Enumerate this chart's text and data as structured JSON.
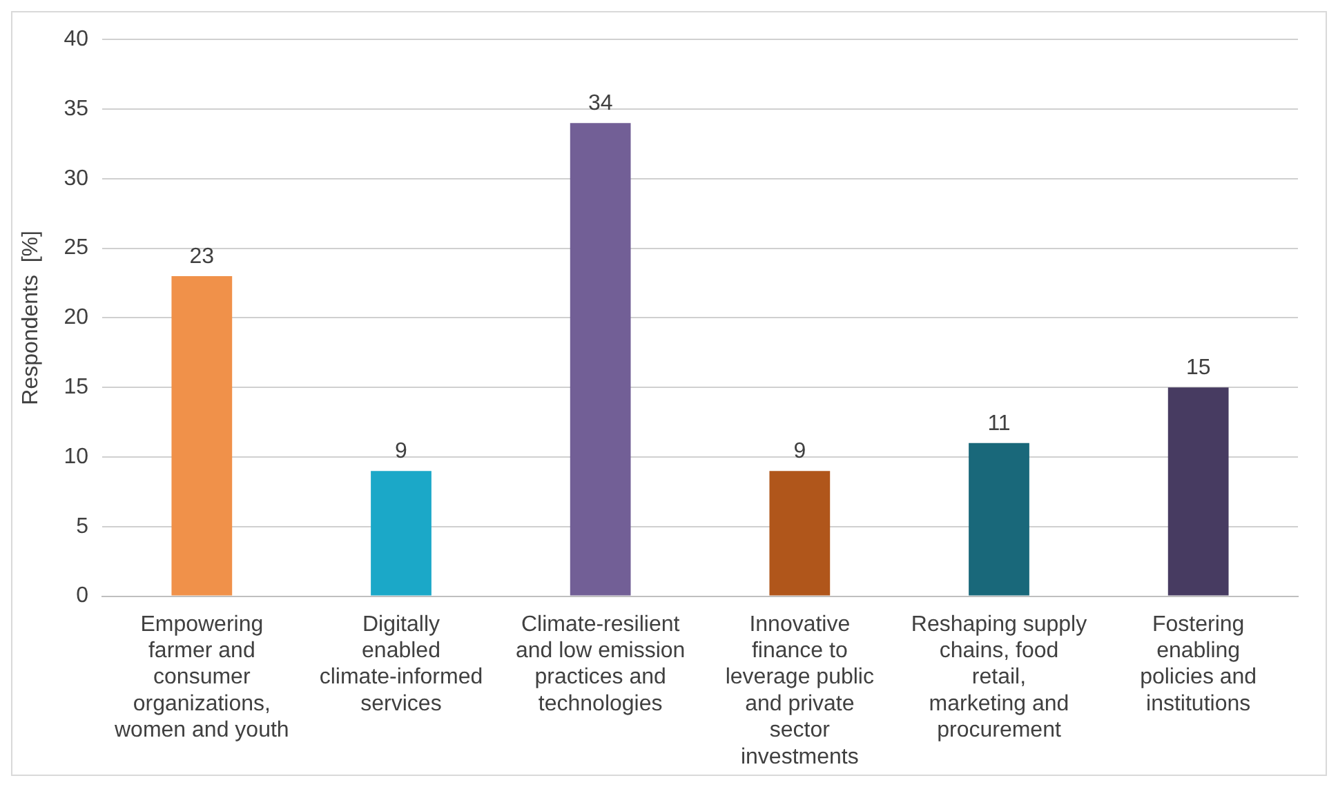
{
  "chart_data": {
    "type": "bar",
    "ylabel": "Respondents  [%]",
    "categories": [
      "Empowering farmer and consumer organizations, women and youth",
      "Digitally enabled climate-informed services",
      "Climate-resilient and low emission practices and technologies",
      "Innovative finance to leverage public and private sector investments",
      "Reshaping supply chains, food retail, marketing and procurement",
      "Fostering enabling policies and institutions"
    ],
    "values": [
      23,
      9,
      34,
      9,
      11,
      15
    ],
    "colors": [
      "#f0914a",
      "#1ba8c8",
      "#725f96",
      "#b0561b",
      "#19687a",
      "#473b61"
    ],
    "ylim": [
      0,
      40
    ],
    "yticks": [
      0,
      5,
      10,
      15,
      20,
      25,
      30,
      35,
      40
    ],
    "grid": "y",
    "data_labels": true,
    "legend": false
  }
}
